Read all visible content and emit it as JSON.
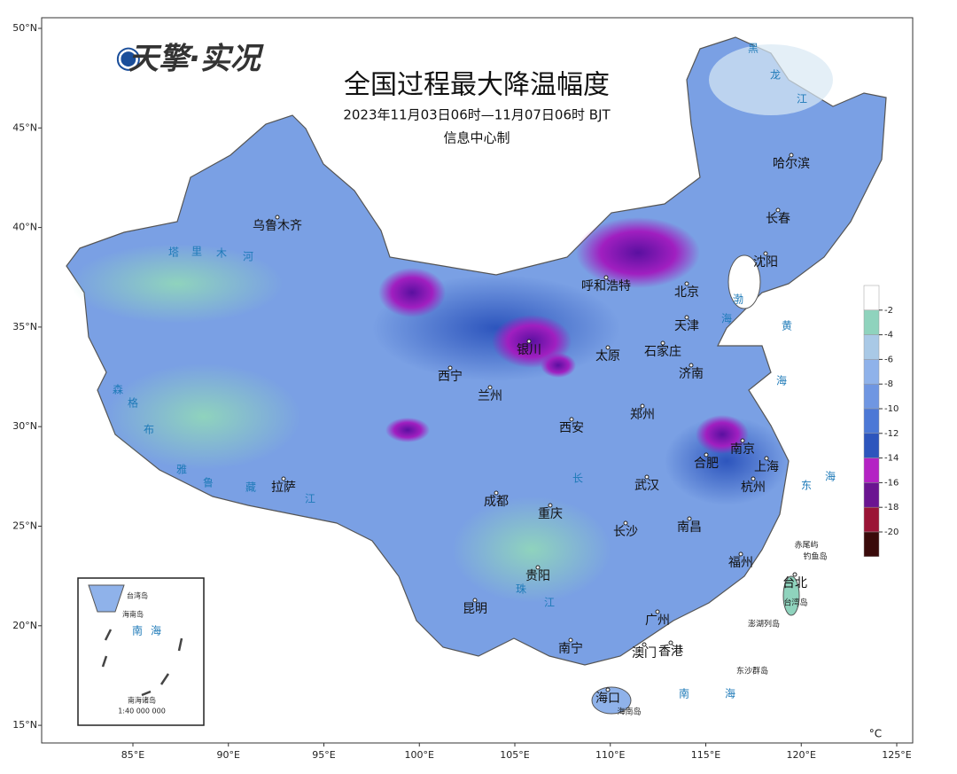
{
  "logo": "天擎·实况",
  "title": "全国过程最大降温幅度",
  "subtitle": "2023年11月03日06时—11月07日06时  BJT",
  "source": "信息中心制",
  "unit": "°C",
  "legend": {
    "ticks": [
      -2,
      -4,
      -6,
      -8,
      -10,
      -12,
      -14,
      -16,
      -18,
      -20
    ],
    "colors": [
      "#ffffff",
      "#8fd3bd",
      "#a9c9e6",
      "#8fb2ea",
      "#6f96e2",
      "#4c78d6",
      "#2d55bd",
      "#b422c4",
      "#6b1491",
      "#9b1436",
      "#3a0a0a"
    ]
  },
  "axes": {
    "xticks": [
      {
        "value": 85,
        "label": "85°E"
      },
      {
        "value": 90,
        "label": "90°E"
      },
      {
        "value": 95,
        "label": "95°E"
      },
      {
        "value": 100,
        "label": "100°E"
      },
      {
        "value": 105,
        "label": "105°E"
      },
      {
        "value": 110,
        "label": "110°E"
      },
      {
        "value": 115,
        "label": "115°E"
      },
      {
        "value": 120,
        "label": "120°E"
      },
      {
        "value": 125,
        "label": "125°E"
      }
    ],
    "yticks": [
      {
        "value": 50,
        "label": "50°N"
      },
      {
        "value": 45,
        "label": "45°N"
      },
      {
        "value": 40,
        "label": "40°N"
      },
      {
        "value": 35,
        "label": "35°N"
      },
      {
        "value": 30,
        "label": "30°N"
      },
      {
        "value": 25,
        "label": "25°N"
      },
      {
        "value": 20,
        "label": "20°N"
      },
      {
        "value": 15,
        "label": "15°N"
      }
    ]
  },
  "cities": [
    "乌鲁木齐",
    "哈尔滨",
    "长春",
    "沈阳",
    "呼和浩特",
    "北京",
    "天津",
    "银川",
    "太原",
    "石家庄",
    "济南",
    "西宁",
    "兰州",
    "郑州",
    "西安",
    "南京",
    "合肥",
    "上海",
    "杭州",
    "拉萨",
    "武汉",
    "成都",
    "重庆",
    "长沙",
    "南昌",
    "福州",
    "贵阳",
    "台北",
    "昆明",
    "广州",
    "南宁",
    "澳门",
    "香港",
    "海口"
  ],
  "places": [
    "赤尾屿",
    "钓鱼岛",
    "台湾岛",
    "澎湖列岛",
    "东沙群岛",
    "海南岛"
  ],
  "water_labels": [
    "渤",
    "海",
    "黄",
    "海",
    "东",
    "海",
    "南",
    "海",
    "塔",
    "里",
    "木",
    "河",
    "雅",
    "鲁",
    "藏",
    "江",
    "长",
    "江",
    "黑",
    "龙",
    "江",
    "珠",
    "森",
    "格",
    "布"
  ],
  "inset": {
    "labels": [
      "台湾岛",
      "海南岛",
      "南",
      "海",
      "南海诸岛",
      "1:40 000 000"
    ]
  }
}
